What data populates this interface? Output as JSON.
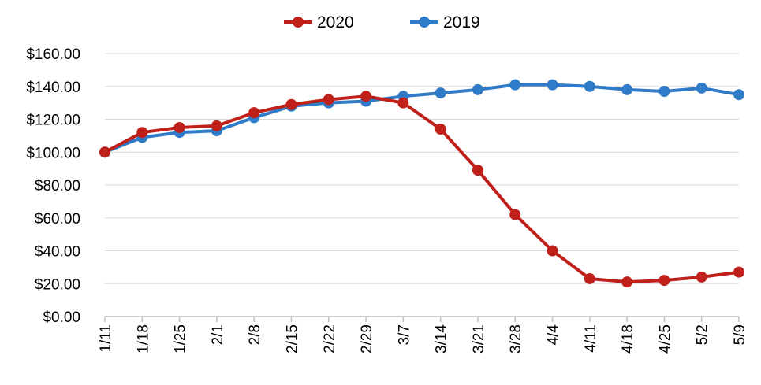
{
  "chart_data": {
    "type": "line",
    "categories": [
      "1/11",
      "1/18",
      "1/25",
      "2/1",
      "2/8",
      "2/15",
      "2/22",
      "2/29",
      "3/7",
      "3/14",
      "3/21",
      "3/28",
      "4/4",
      "4/11",
      "4/18",
      "4/25",
      "5/2",
      "5/9"
    ],
    "series": [
      {
        "name": "2020",
        "color": "#c0201a",
        "values": [
          100,
          112,
          115,
          116,
          124,
          129,
          132,
          134,
          130,
          114,
          89,
          62,
          40,
          23,
          21,
          22,
          24,
          27
        ]
      },
      {
        "name": "2019",
        "color": "#2f7bc8",
        "values": [
          100,
          109,
          112,
          113,
          121,
          128,
          130,
          131,
          134,
          136,
          138,
          141,
          141,
          140,
          138,
          137,
          139,
          135
        ]
      }
    ],
    "yticks": [
      "$0.00",
      "$20.00",
      "$40.00",
      "$60.00",
      "$80.00",
      "$100.00",
      "$120.00",
      "$140.00",
      "$160.00"
    ],
    "ylim": [
      0,
      160
    ],
    "ystep": 20,
    "grid": true,
    "legend": "top-center",
    "title": "",
    "xlabel": "",
    "ylabel": ""
  }
}
